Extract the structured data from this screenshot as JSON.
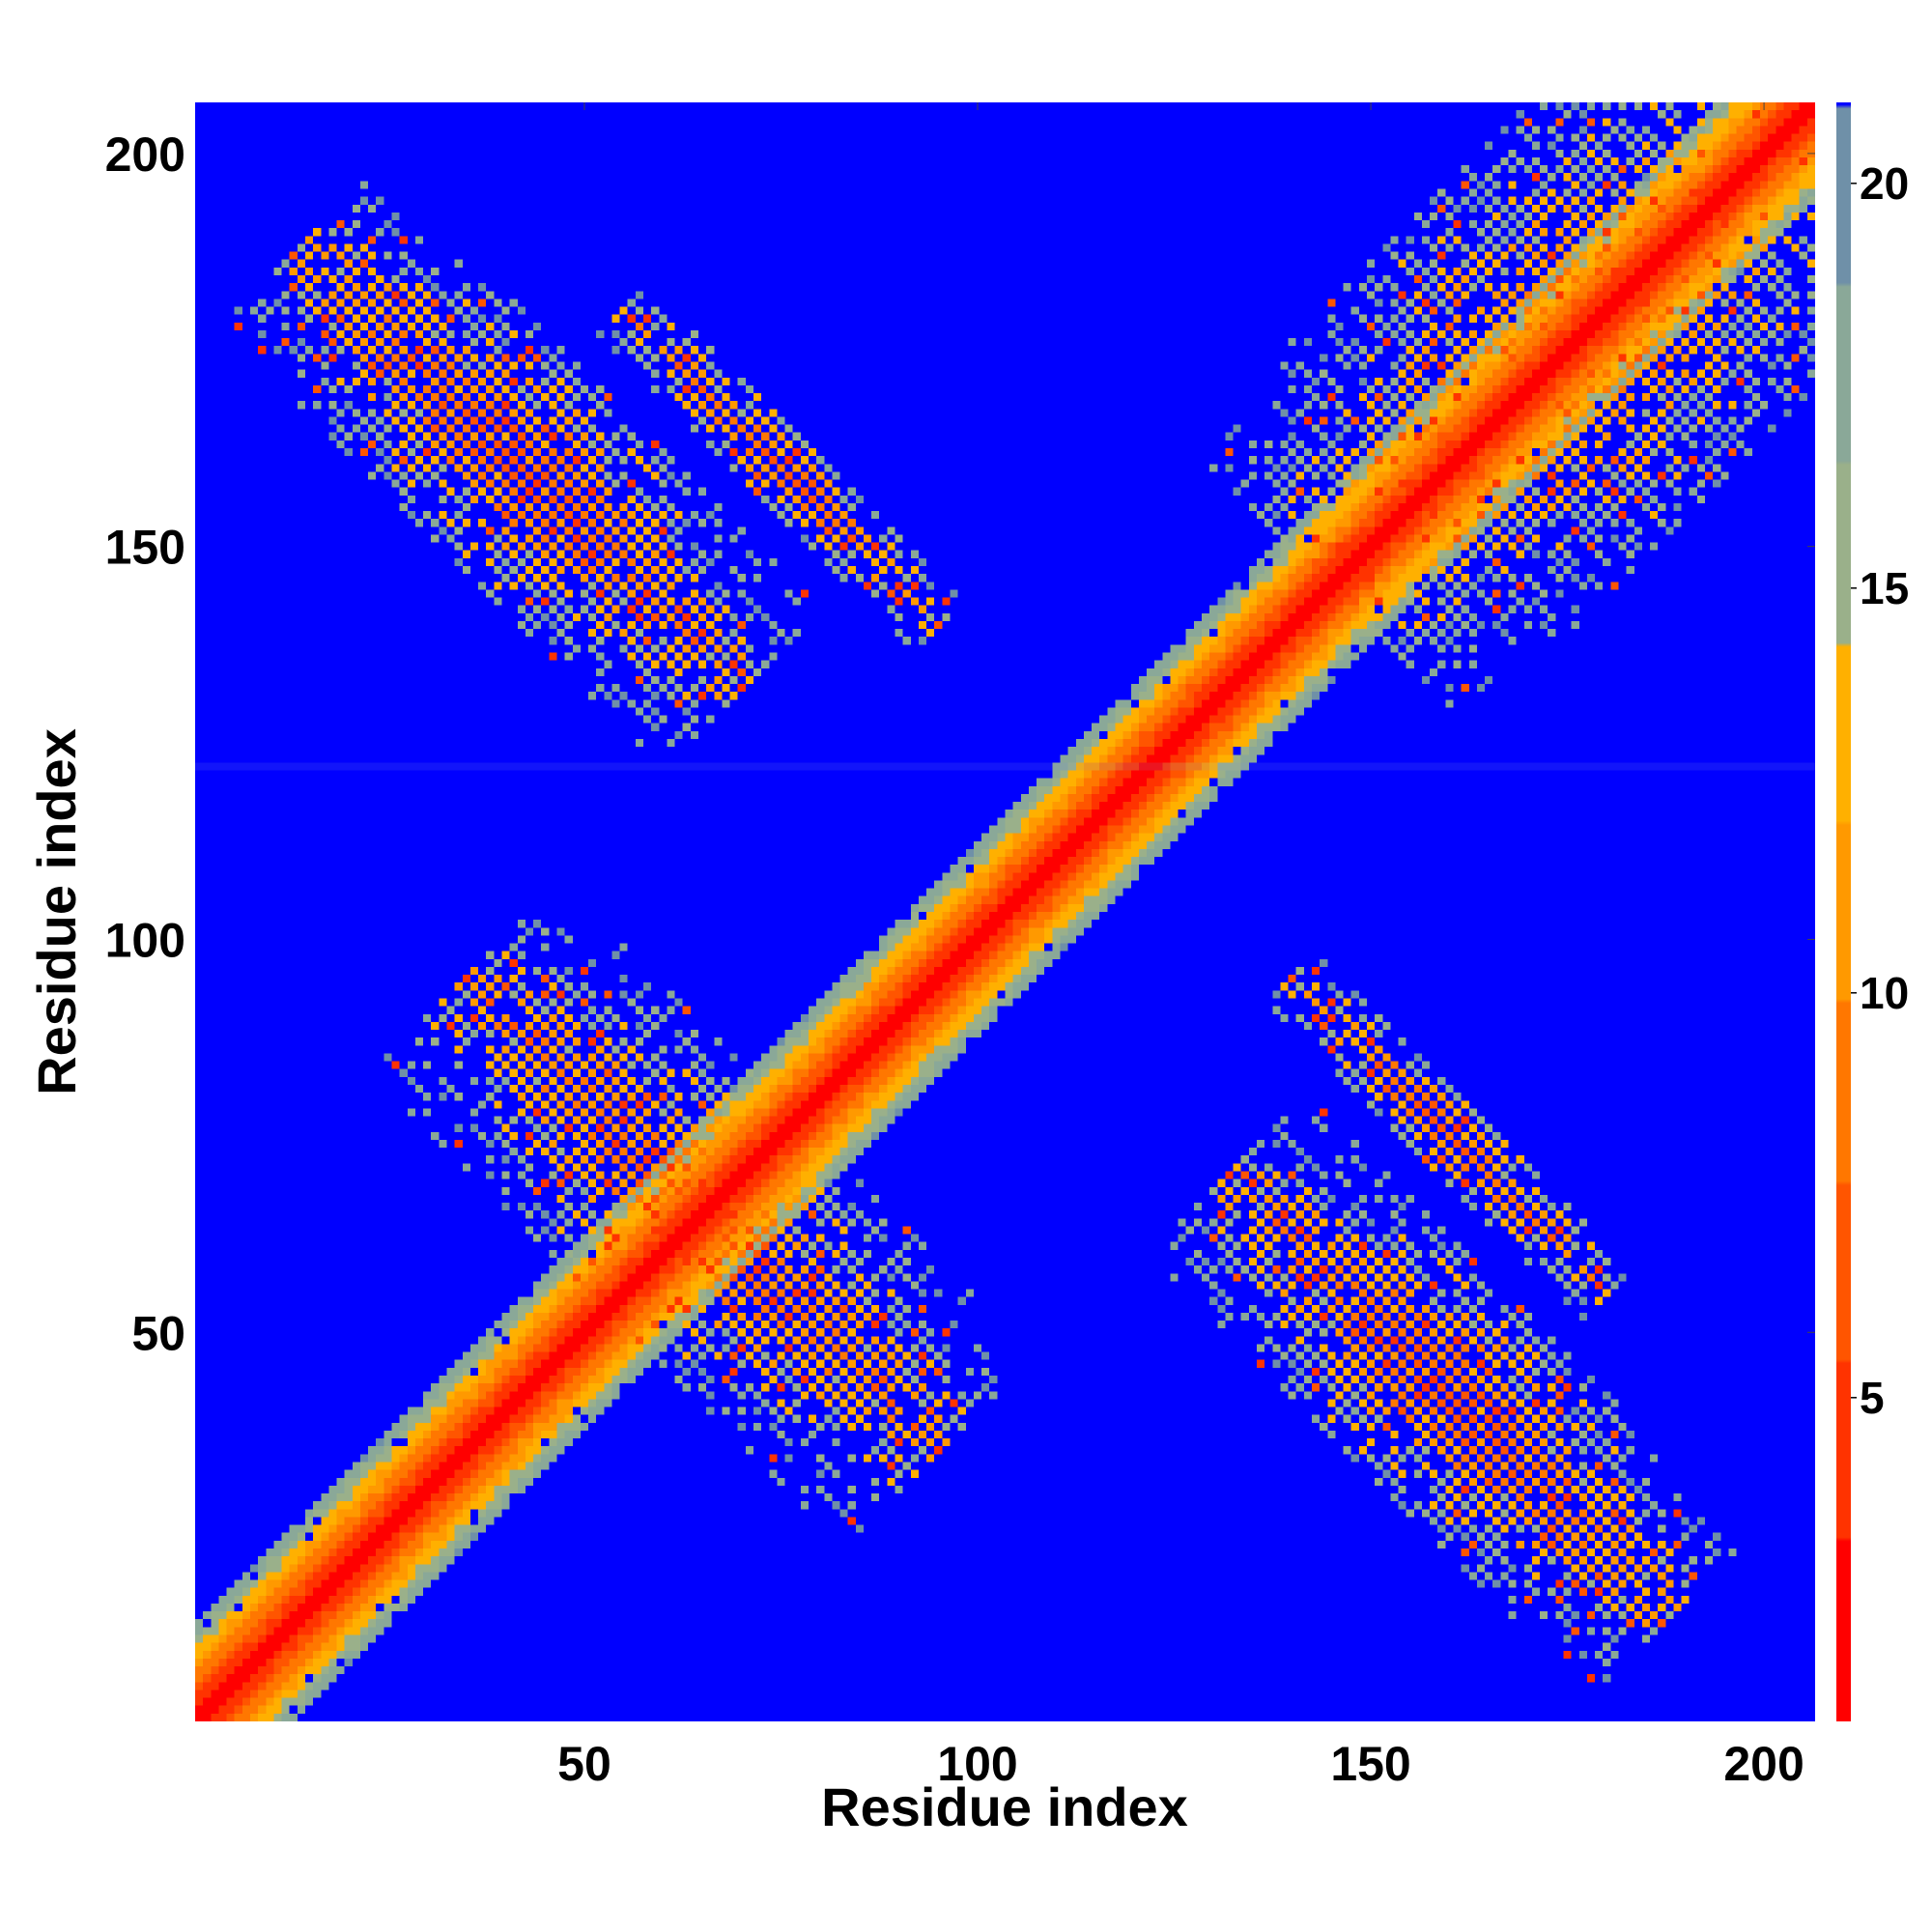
{
  "chart_data": {
    "type": "heatmap",
    "title": "",
    "xlabel": "Residue index",
    "ylabel": "Residue index",
    "n_residues": 206,
    "xlim": [
      1,
      206
    ],
    "ylim": [
      1,
      206
    ],
    "xticks": [
      50,
      100,
      150,
      200
    ],
    "yticks": [
      50,
      100,
      150,
      200
    ],
    "colorbar": {
      "range": [
        1,
        21
      ],
      "ticks": [
        5,
        10,
        15,
        20
      ],
      "placement": "right",
      "colors": [
        "#ff0000",
        "#ff3300",
        "#ff5500",
        "#ff7700",
        "#ff9900",
        "#ffb000",
        "#9ab08a",
        "#8aa898",
        "#6f90a8",
        "#0000ff"
      ]
    },
    "background_value": 21,
    "diagonal_band": {
      "from": 1,
      "to": 206,
      "half_width": 12
    },
    "features": [
      {
        "kind": "antiparallel",
        "center_i": 42,
        "center_j": 160,
        "length": 28,
        "width": 10,
        "note": "region x 20-55, y 138-200"
      },
      {
        "kind": "antiparallel",
        "center_i": 160,
        "center_j": 42,
        "length": 28,
        "width": 10
      },
      {
        "kind": "antiparallel",
        "center_i": 75,
        "center_j": 160,
        "length": 20,
        "width": 3
      },
      {
        "kind": "antiparallel",
        "center_i": 160,
        "center_j": 75,
        "length": 20,
        "width": 3
      },
      {
        "kind": "parallel",
        "center_i": 175,
        "center_j": 175,
        "length": 30,
        "width": 18
      },
      {
        "kind": "antiparallel",
        "center_i": 65,
        "center_j": 65,
        "length": 30,
        "width": 12
      }
    ],
    "gap_row": 122
  }
}
